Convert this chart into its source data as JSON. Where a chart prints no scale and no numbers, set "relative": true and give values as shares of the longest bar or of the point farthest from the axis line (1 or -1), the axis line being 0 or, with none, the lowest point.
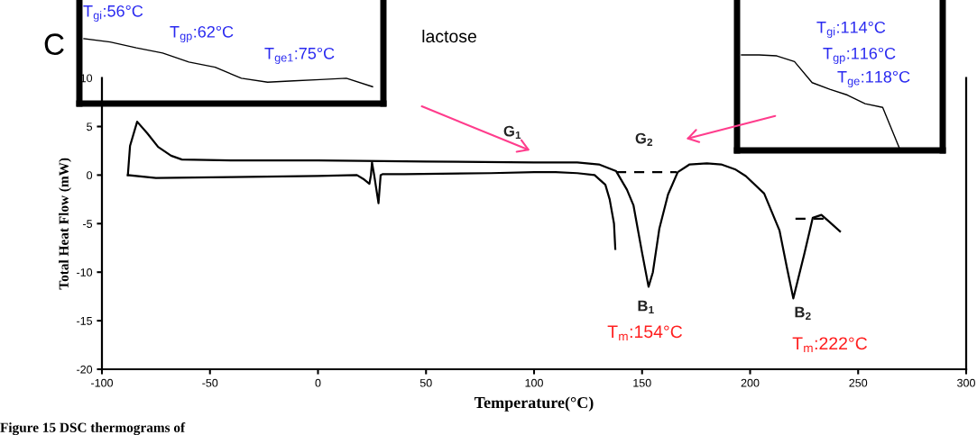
{
  "chart_data": [
    {
      "type": "line",
      "title": "lactose",
      "xlabel": "Temperature(°C)",
      "ylabel": "Total Heat Flow (mW)",
      "xlim": [
        -100,
        300
      ],
      "xticks": [
        -100,
        -50,
        0,
        50,
        100,
        150,
        200,
        250,
        300
      ],
      "ylim": [
        -20,
        10
      ],
      "yticks": [
        10,
        5,
        0,
        -5,
        -10,
        -15,
        -20
      ],
      "grid": false,
      "legend": false,
      "marker": "none",
      "series": [
        {
          "color": "#000000",
          "line_style": "solid",
          "x": [
            -88,
            -75,
            -40,
            0,
            18,
            21,
            23.8,
            24.5,
            25,
            26,
            28,
            29,
            30,
            40,
            80,
            100,
            110,
            120,
            128,
            133,
            135,
            137,
            137.6
          ],
          "values": [
            0,
            -0.3,
            -0.2,
            -0.1,
            0,
            -0.4,
            -0.9,
            0,
            1.3,
            0,
            -2.9,
            0,
            0.1,
            0.1,
            0.2,
            0.3,
            0.3,
            0.2,
            0,
            -1,
            -2.5,
            -5,
            -7.6
          ]
        },
        {
          "color": "#000000",
          "line_style": "solid",
          "x": [
            -88,
            -87,
            -83.7,
            -79,
            -74,
            -68,
            -63,
            -40,
            0,
            50,
            100,
            120,
            130,
            138,
            143,
            146,
            150,
            153,
            155,
            158,
            162,
            166.5,
            172,
            180,
            186.6,
            193,
            198,
            206.5,
            213.6,
            217,
            220,
            225,
            229,
            233,
            236.6,
            241.6
          ],
          "values": [
            0,
            3,
            5.5,
            4.3,
            2.9,
            2,
            1.6,
            1.5,
            1.5,
            1.4,
            1.3,
            1.3,
            1.1,
            0.4,
            -1.5,
            -3.1,
            -8,
            -11.5,
            -10,
            -5.5,
            -2,
            0.3,
            1.1,
            1.2,
            1.1,
            0.6,
            -0.1,
            -1.9,
            -5.7,
            -9.5,
            -12.7,
            -8.2,
            -4.4,
            -4.1,
            -4.8,
            -5.8
          ]
        },
        {
          "color": "#000000",
          "line_style": "dashed",
          "x": [
            138,
            166
          ],
          "values": [
            0.3,
            0.3
          ]
        },
        {
          "color": "#000000",
          "line_style": "dashed",
          "x": [
            221,
            235
          ],
          "values": [
            -4.5,
            -4.5
          ]
        }
      ],
      "annotations": [
        "C",
        "Figure 15 DSC thermograms of",
        "G$_{1}$",
        "G$_{2}$",
        "B$_{1}$",
        "B$_{2}$",
        "T$_{m}$:154°C",
        "T$_{m}$:222°C"
      ]
    },
    {
      "type": "line",
      "relative": true,
      "categories": [
        null,
        null,
        null,
        null,
        null,
        null,
        null,
        null,
        null,
        null,
        null,
        null
      ],
      "series": [
        {
          "color": "#000000",
          "values": [
            1,
            0.95,
            0.86,
            0.78,
            0.64,
            0.56,
            0.39,
            0.33,
            0.35,
            0.37,
            0.39,
            0.26
          ]
        }
      ],
      "annotations": [
        "T$_{gi}$:56°C",
        "T$_{gp}$:62°C",
        "T$_{ge1}$:75°C"
      ]
    },
    {
      "type": "line",
      "relative": true,
      "categories": [
        null,
        null,
        null,
        null,
        null,
        null,
        null,
        null,
        null,
        null
      ],
      "series": [
        {
          "color": "#000000",
          "values": [
            1,
            1.0,
            0.99,
            0.93,
            0.71,
            0.64,
            0.58,
            0.49,
            0.45,
            0
          ]
        }
      ],
      "annotations": [
        "T$_{gi}$:114°C",
        "T$_{gp}$:116°C",
        "T$_{ge}$:118°C"
      ]
    }
  ]
}
